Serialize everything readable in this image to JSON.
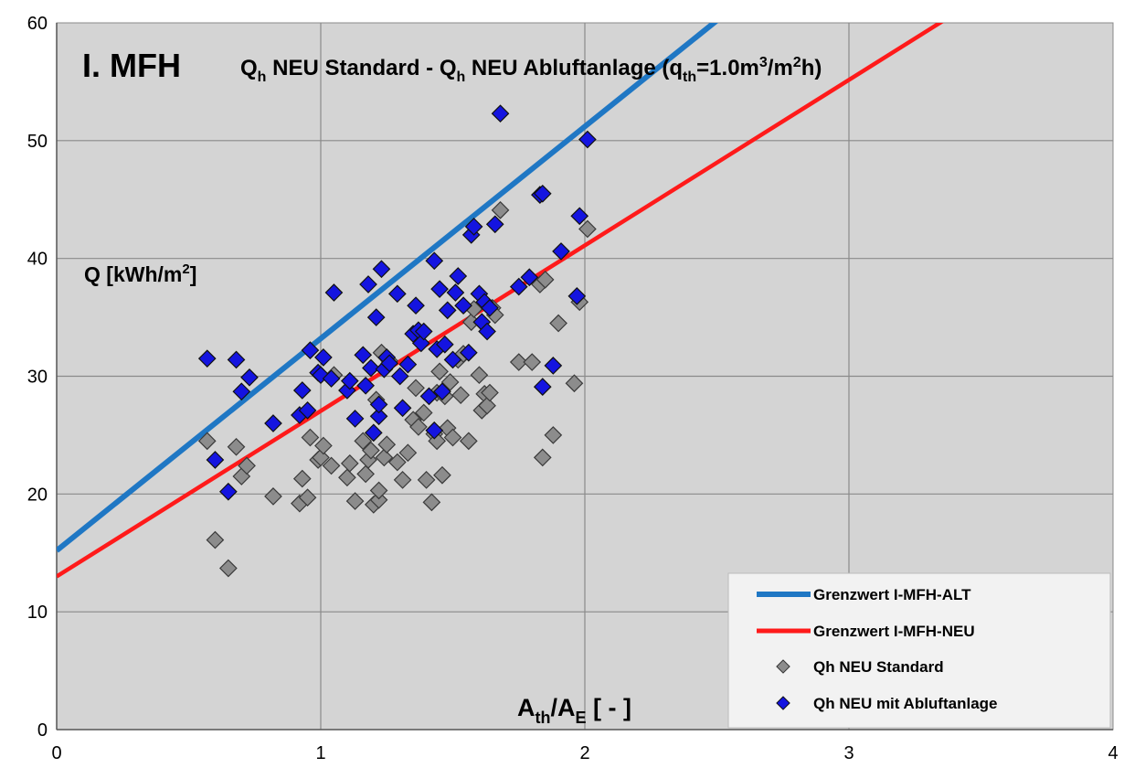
{
  "chart_data": {
    "type": "scatter",
    "title_prefix": "I. MFH",
    "title": {
      "q1": "Q",
      "q1_sub": "h",
      "t1": " NEU Standard - ",
      "q2": "Q",
      "q2_sub": "h",
      "t2": " NEU Abluftanlage (q",
      "q3_sub": "th",
      "t3": "=1.0m",
      "sup1": "3",
      "t4": "/m",
      "sup2": "2",
      "t5": "h)"
    },
    "ylabel": {
      "main": "Q [kWh/m",
      "sup": "2",
      "end": "]"
    },
    "xlabel": {
      "a1": "A",
      "a1_sub": "th",
      "slash": "/A",
      "a2_sub": "E",
      "end": " [ - ]"
    },
    "xlim": [
      0,
      4
    ],
    "ylim": [
      0,
      60
    ],
    "x_ticks": [
      "0",
      "1",
      "2",
      "3",
      "4"
    ],
    "y_ticks": [
      "0",
      "10",
      "20",
      "30",
      "40",
      "50",
      "60"
    ],
    "grid": true,
    "legend_position": "bottom-right",
    "colors": {
      "alt": "#1f77c4",
      "neu": "#ff1a1a",
      "standard": "#8c8c8c",
      "abluft": "#1414e0",
      "plot_bg": "#d4d4d4"
    },
    "lines": [
      {
        "name": "Grenzwert  I-MFH-ALT",
        "x": [
          0,
          2.5
        ],
        "y": [
          15.2,
          60.2
        ]
      },
      {
        "name": "Grenzwert  I-MFH-NEU",
        "x": [
          0,
          3.38
        ],
        "y": [
          13.0,
          60.5
        ]
      }
    ],
    "series": [
      {
        "name": "Qh NEU Standard",
        "points": [
          [
            0.57,
            24.5
          ],
          [
            0.6,
            16.1
          ],
          [
            0.65,
            13.7
          ],
          [
            0.68,
            24.0
          ],
          [
            0.7,
            21.5
          ],
          [
            0.72,
            22.4
          ],
          [
            0.82,
            19.8
          ],
          [
            0.92,
            19.2
          ],
          [
            0.93,
            21.3
          ],
          [
            0.95,
            19.7
          ],
          [
            0.96,
            24.8
          ],
          [
            0.99,
            22.9
          ],
          [
            1.0,
            23.1
          ],
          [
            1.01,
            24.1
          ],
          [
            1.04,
            22.4
          ],
          [
            1.05,
            30.1
          ],
          [
            1.1,
            21.4
          ],
          [
            1.11,
            22.6
          ],
          [
            1.13,
            19.4
          ],
          [
            1.16,
            24.5
          ],
          [
            1.17,
            21.7
          ],
          [
            1.18,
            22.9
          ],
          [
            1.19,
            23.7
          ],
          [
            1.2,
            19.1
          ],
          [
            1.21,
            28.0
          ],
          [
            1.22,
            19.5
          ],
          [
            1.22,
            20.3
          ],
          [
            1.23,
            32.0
          ],
          [
            1.24,
            23.1
          ],
          [
            1.25,
            24.2
          ],
          [
            1.26,
            31.3
          ],
          [
            1.29,
            22.7
          ],
          [
            1.31,
            21.2
          ],
          [
            1.33,
            23.5
          ],
          [
            1.35,
            26.3
          ],
          [
            1.36,
            29.0
          ],
          [
            1.37,
            25.7
          ],
          [
            1.39,
            26.9
          ],
          [
            1.4,
            21.2
          ],
          [
            1.42,
            19.3
          ],
          [
            1.43,
            25.1
          ],
          [
            1.44,
            24.5
          ],
          [
            1.44,
            28.6
          ],
          [
            1.45,
            30.4
          ],
          [
            1.46,
            21.6
          ],
          [
            1.47,
            28.3
          ],
          [
            1.48,
            25.6
          ],
          [
            1.49,
            29.5
          ],
          [
            1.5,
            24.8
          ],
          [
            1.52,
            31.4
          ],
          [
            1.53,
            28.4
          ],
          [
            1.54,
            31.9
          ],
          [
            1.56,
            24.5
          ],
          [
            1.57,
            34.6
          ],
          [
            1.58,
            35.7
          ],
          [
            1.6,
            30.1
          ],
          [
            1.61,
            27.1
          ],
          [
            1.62,
            28.5
          ],
          [
            1.63,
            27.5
          ],
          [
            1.64,
            28.6
          ],
          [
            1.65,
            35.8
          ],
          [
            1.66,
            35.2
          ],
          [
            1.68,
            44.1
          ],
          [
            1.75,
            31.2
          ],
          [
            1.8,
            31.2
          ],
          [
            1.83,
            37.8
          ],
          [
            1.84,
            23.1
          ],
          [
            1.85,
            38.2
          ],
          [
            1.88,
            25.0
          ],
          [
            1.9,
            34.5
          ],
          [
            1.96,
            29.4
          ],
          [
            1.98,
            36.3
          ],
          [
            2.01,
            42.5
          ]
        ]
      },
      {
        "name": "Qh NEU mit Abluftanlage",
        "points": [
          [
            0.57,
            31.5
          ],
          [
            0.6,
            22.9
          ],
          [
            0.65,
            20.2
          ],
          [
            0.68,
            31.4
          ],
          [
            0.7,
            28.7
          ],
          [
            0.73,
            29.9
          ],
          [
            0.82,
            26.0
          ],
          [
            0.92,
            26.7
          ],
          [
            0.93,
            28.8
          ],
          [
            0.95,
            27.1
          ],
          [
            0.96,
            32.2
          ],
          [
            0.99,
            30.3
          ],
          [
            1.0,
            30.1
          ],
          [
            1.01,
            31.6
          ],
          [
            1.04,
            29.8
          ],
          [
            1.05,
            37.1
          ],
          [
            1.1,
            28.8
          ],
          [
            1.11,
            29.6
          ],
          [
            1.13,
            26.4
          ],
          [
            1.16,
            31.8
          ],
          [
            1.17,
            29.2
          ],
          [
            1.18,
            37.8
          ],
          [
            1.19,
            30.7
          ],
          [
            1.2,
            25.2
          ],
          [
            1.21,
            35.0
          ],
          [
            1.22,
            26.6
          ],
          [
            1.22,
            27.6
          ],
          [
            1.23,
            39.1
          ],
          [
            1.24,
            30.6
          ],
          [
            1.25,
            31.6
          ],
          [
            1.26,
            31.1
          ],
          [
            1.29,
            37.0
          ],
          [
            1.3,
            30.0
          ],
          [
            1.31,
            27.3
          ],
          [
            1.33,
            31.0
          ],
          [
            1.35,
            33.6
          ],
          [
            1.36,
            36.0
          ],
          [
            1.37,
            33.9
          ],
          [
            1.38,
            32.8
          ],
          [
            1.39,
            33.8
          ],
          [
            1.41,
            28.3
          ],
          [
            1.43,
            25.4
          ],
          [
            1.43,
            39.8
          ],
          [
            1.44,
            32.3
          ],
          [
            1.45,
            37.4
          ],
          [
            1.46,
            28.7
          ],
          [
            1.47,
            32.7
          ],
          [
            1.48,
            35.6
          ],
          [
            1.5,
            31.4
          ],
          [
            1.51,
            37.1
          ],
          [
            1.52,
            38.5
          ],
          [
            1.54,
            36.0
          ],
          [
            1.56,
            32.0
          ],
          [
            1.57,
            42.0
          ],
          [
            1.58,
            42.7
          ],
          [
            1.6,
            37.0
          ],
          [
            1.61,
            34.6
          ],
          [
            1.62,
            36.3
          ],
          [
            1.63,
            33.8
          ],
          [
            1.64,
            35.8
          ],
          [
            1.66,
            42.9
          ],
          [
            1.68,
            52.3
          ],
          [
            1.75,
            37.6
          ],
          [
            1.79,
            38.4
          ],
          [
            1.83,
            45.4
          ],
          [
            1.84,
            45.5
          ],
          [
            1.84,
            29.1
          ],
          [
            1.88,
            30.9
          ],
          [
            1.91,
            40.6
          ],
          [
            1.97,
            36.8
          ],
          [
            1.98,
            43.6
          ],
          [
            2.01,
            50.1
          ]
        ]
      }
    ]
  }
}
